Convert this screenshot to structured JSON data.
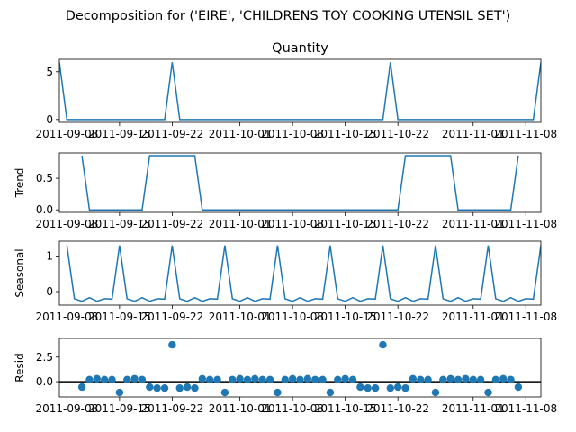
{
  "figure": {
    "suptitle": "Decomposition for ('EIRE', 'CHILDRENS TOY COOKING UTENSIL SET')"
  },
  "colors": {
    "series": "#1f77b4",
    "axis": "#000000",
    "zero_line": "#000000"
  },
  "chart_data": [
    {
      "type": "line",
      "title": "Quantity",
      "ylabel": "",
      "x_start": "2011-09-07",
      "x_end": "2011-11-10",
      "xticks": [
        "2011-09-08",
        "2011-09-15",
        "2011-09-22",
        "2011-10-01",
        "2011-10-08",
        "2011-10-15",
        "2011-10-22",
        "2011-11-01",
        "2011-11-08"
      ],
      "ylim": [
        -0.3,
        6.3
      ],
      "yticks": [
        0,
        5
      ],
      "series": [
        {
          "x": [
            "2011-09-07",
            "2011-09-08",
            "2011-09-21",
            "2011-09-22",
            "2011-09-23",
            "2011-10-20",
            "2011-10-21",
            "2011-10-22",
            "2011-11-09",
            "2011-11-10"
          ],
          "values": [
            6,
            0,
            0,
            6,
            0,
            0,
            6,
            0,
            0,
            6
          ]
        }
      ]
    },
    {
      "type": "line",
      "title": "",
      "ylabel": "Trend",
      "x_start": "2011-09-07",
      "x_end": "2011-11-10",
      "xticks": [
        "2011-09-08",
        "2011-09-15",
        "2011-09-22",
        "2011-10-01",
        "2011-10-08",
        "2011-10-15",
        "2011-10-22",
        "2011-11-01",
        "2011-11-08"
      ],
      "ylim": [
        -0.04,
        0.9
      ],
      "yticks": [
        0.0,
        0.5
      ],
      "series": [
        {
          "x": [
            "2011-09-10",
            "2011-09-11",
            "2011-09-18",
            "2011-09-19",
            "2011-09-25",
            "2011-09-26",
            "2011-10-22",
            "2011-10-23",
            "2011-10-29",
            "2011-10-30",
            "2011-11-06",
            "2011-11-07"
          ],
          "values": [
            0.857,
            0,
            0,
            0.857,
            0.857,
            0,
            0,
            0.857,
            0.857,
            0,
            0,
            0.857
          ]
        }
      ]
    },
    {
      "type": "line",
      "title": "",
      "ylabel": "Seasonal",
      "x_start": "2011-09-07",
      "x_end": "2011-11-10",
      "xticks": [
        "2011-09-08",
        "2011-09-15",
        "2011-09-22",
        "2011-10-01",
        "2011-10-08",
        "2011-10-15",
        "2011-10-22",
        "2011-11-01",
        "2011-11-08"
      ],
      "ylim": [
        -0.38,
        1.42
      ],
      "yticks": [
        0,
        1
      ],
      "period": 7,
      "pattern": [
        1.3,
        -0.2,
        -0.27,
        -0.17,
        -0.27,
        -0.2,
        -0.21
      ],
      "series": [
        {
          "start": "2011-09-08",
          "end": "2011-11-10"
        }
      ]
    },
    {
      "type": "scatter",
      "title": "",
      "ylabel": "Resid",
      "x_start": "2011-09-07",
      "x_end": "2011-11-10",
      "xticks": [
        "2011-09-08",
        "2011-09-15",
        "2011-09-22",
        "2011-10-01",
        "2011-10-08",
        "2011-10-15",
        "2011-10-22",
        "2011-11-01",
        "2011-11-08"
      ],
      "ylim": [
        -1.55,
        4.4
      ],
      "yticks": [
        0.0,
        2.5
      ],
      "hline": 0,
      "series": [
        {
          "start": "2011-09-10",
          "values": [
            -0.55,
            0.2,
            0.3,
            0.2,
            0.2,
            -1.1,
            0.2,
            0.3,
            0.2,
            -0.55,
            -0.65,
            -0.65,
            3.75,
            -0.65,
            -0.55,
            -0.65,
            0.3,
            0.2,
            0.2,
            -1.1,
            0.2,
            0.3,
            0.2,
            0.3,
            0.2,
            0.2,
            -1.1,
            0.2,
            0.3,
            0.2,
            0.3,
            0.2,
            0.2,
            -1.1,
            0.2,
            0.3,
            0.2,
            -0.55,
            -0.65,
            -0.65,
            3.75,
            -0.65,
            -0.55,
            -0.65,
            0.3,
            0.2,
            0.2,
            -1.1,
            0.2,
            0.3,
            0.2,
            0.3,
            0.2,
            0.2,
            -1.1,
            0.2,
            0.3,
            0.2,
            -0.55
          ]
        }
      ]
    }
  ]
}
